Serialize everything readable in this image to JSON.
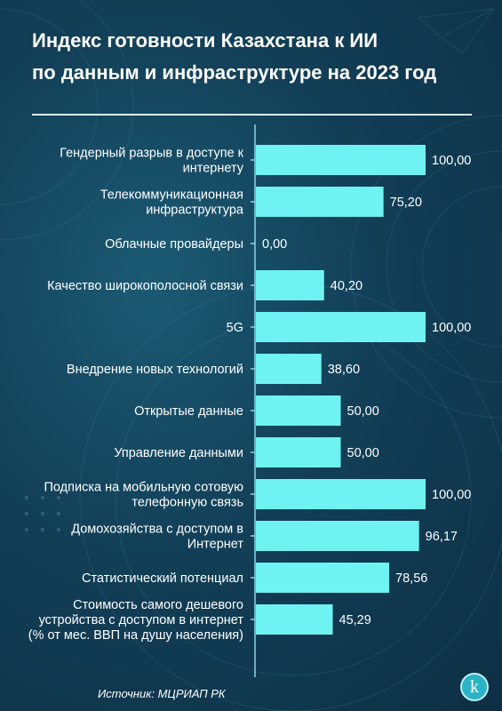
{
  "title_line1": "Индекс готовности Казахстана к ИИ",
  "title_line2": "по данным и инфраструктуре на 2023 год",
  "source": "Источник: МЦРИАП РК",
  "logo_letter": "k",
  "colors": {
    "bar": "#6ff2f2",
    "axis": "#8fd3e6",
    "text": "#ffffff"
  },
  "chart_data": {
    "type": "bar",
    "orientation": "horizontal",
    "title": "Индекс готовности Казахстана к ИИ по данным и инфраструктуре на 2023 год",
    "xlim": [
      0,
      100
    ],
    "grid": false,
    "categories": [
      [
        "Гендерный разрыв в доступе к",
        "интернету"
      ],
      [
        "Телекоммуникационная",
        "инфраструктура"
      ],
      [
        "Облачные провайдеры"
      ],
      [
        "Качество широкополосной связи"
      ],
      [
        "5G"
      ],
      [
        "Внедрение новых технологий"
      ],
      [
        "Открытые данные"
      ],
      [
        "Управление данными"
      ],
      [
        "Подписка на мобильную сотовую",
        "телефонную связь"
      ],
      [
        "Домохозяйства с доступом в",
        "Интернет"
      ],
      [
        "Статистический потенциал"
      ],
      [
        "Стоимость самого дешевого",
        "устройства с доступом в интернет",
        "(% от мес. ВВП на душу населения)"
      ]
    ],
    "values": [
      100.0,
      75.2,
      0.0,
      40.2,
      100.0,
      38.6,
      50.0,
      50.0,
      100.0,
      96.17,
      78.56,
      45.29
    ],
    "value_labels": [
      "100,00",
      "75,20",
      "0,00",
      "40,20",
      "100,00",
      "38,60",
      "50,00",
      "50,00",
      "100,00",
      "96,17",
      "78,56",
      "45,29"
    ]
  }
}
